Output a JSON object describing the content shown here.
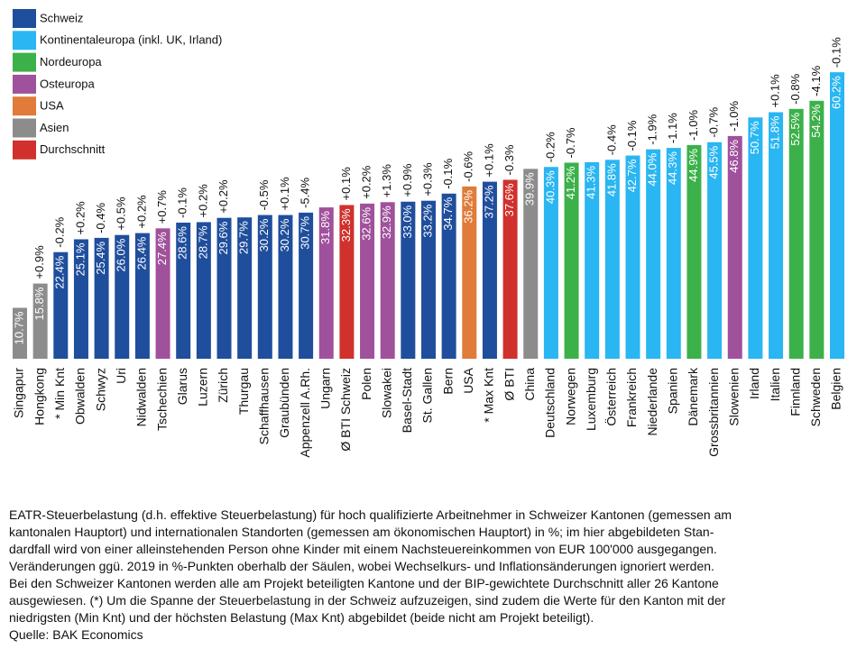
{
  "chart_data": {
    "type": "bar",
    "legend": [
      {
        "name": "Schweiz",
        "color": "#1f4e9c"
      },
      {
        "name": "Kontinentaleuropa (inkl. UK, Irland)",
        "color": "#29b6f2"
      },
      {
        "name": "Nordeuropa",
        "color": "#3cb14a"
      },
      {
        "name": "Osteuropa",
        "color": "#a0519c"
      },
      {
        "name": "USA",
        "color": "#e07b39"
      },
      {
        "name": "Asien",
        "color": "#8c8c8c"
      },
      {
        "name": "Durchschnitt",
        "color": "#d0312d"
      }
    ],
    "categories": [
      "Singapur",
      "Hongkong",
      "* Min Knt",
      "Obwalden",
      "Schwyz",
      "Uri",
      "Nidwalden",
      "Tschechien",
      "Glarus",
      "Luzern",
      "Zürich",
      "Thurgau",
      "Schaffhausen",
      "Graubünden",
      "Appenzell A.Rh.",
      "Ungarn",
      "Ø BTI Schweiz",
      "Polen",
      "Slowakei",
      "Basel-Stadt",
      "St. Gallen",
      "Bern",
      "USA",
      "* Max Knt",
      "Ø BTI",
      "China",
      "Deutschland",
      "Norwegen",
      "Luxemburg",
      "Österreich",
      "Frankreich",
      "Niederlande",
      "Spanien",
      "Dänemark",
      "Grossbritannien",
      "Slowenien",
      "Irland",
      "Italien",
      "Finnland",
      "Schweden",
      "Belgien"
    ],
    "values": [
      10.7,
      15.8,
      22.4,
      25.1,
      25.4,
      26.0,
      26.4,
      27.4,
      28.6,
      28.7,
      29.6,
      29.7,
      30.2,
      30.2,
      30.7,
      31.8,
      32.3,
      32.6,
      32.9,
      33.0,
      33.2,
      34.7,
      36.2,
      37.2,
      37.6,
      39.9,
      40.3,
      41.2,
      41.3,
      41.8,
      42.7,
      44.0,
      44.3,
      44.9,
      45.5,
      46.8,
      50.7,
      51.8,
      52.5,
      54.2,
      60.2
    ],
    "value_labels": [
      "10.7%",
      "15.8%",
      "22.4%",
      "25.1%",
      "25.4%",
      "26.0%",
      "26.4%",
      "27.4%",
      "28.6%",
      "28.7%",
      "29.6%",
      "29.7%",
      "30.2%",
      "30.2%",
      "30.7%",
      "31.8%",
      "32.3%",
      "32.6%",
      "32.9%",
      "33.0%",
      "33.2%",
      "34.7%",
      "36.2%",
      "37.2%",
      "37.6%",
      "39.9%",
      "40.3%",
      "41.2%",
      "41.3%",
      "41.8%",
      "42.7%",
      "44.0%",
      "44.3%",
      "44.9%",
      "45.5%",
      "46.8%",
      "50.7%",
      "51.8%",
      "52.5%",
      "54.2%",
      "60.2%"
    ],
    "change_labels": [
      null,
      "+0.9%",
      "-0.2%",
      "+0.2%",
      "-0.4%",
      "+0.5%",
      "+0.2%",
      "+0.7%",
      "-0.1%",
      "+0.2%",
      "+0.2%",
      null,
      "-0.5%",
      "+0.1%",
      "-5.4%",
      null,
      "+0.1%",
      "+0.2%",
      "+1.3%",
      "+0.9%",
      "+0.3%",
      "-0.1%",
      "-0.6%",
      "+0.1%",
      "-0.3%",
      null,
      "-0.2%",
      "-0.7%",
      null,
      "-0.4%",
      "-0.1%",
      "-1.9%",
      "-1.1%",
      "-1.0%",
      "-0.7%",
      "-1.0%",
      null,
      "+0.1%",
      "-0.8%",
      "-4.1%",
      "-0.1%"
    ],
    "colors": [
      "#8c8c8c",
      "#8c8c8c",
      "#1f4e9c",
      "#1f4e9c",
      "#1f4e9c",
      "#1f4e9c",
      "#1f4e9c",
      "#a0519c",
      "#1f4e9c",
      "#1f4e9c",
      "#1f4e9c",
      "#1f4e9c",
      "#1f4e9c",
      "#1f4e9c",
      "#1f4e9c",
      "#a0519c",
      "#d0312d",
      "#a0519c",
      "#a0519c",
      "#1f4e9c",
      "#1f4e9c",
      "#1f4e9c",
      "#e07b39",
      "#1f4e9c",
      "#d0312d",
      "#8c8c8c",
      "#29b6f2",
      "#3cb14a",
      "#29b6f2",
      "#29b6f2",
      "#29b6f2",
      "#29b6f2",
      "#29b6f2",
      "#3cb14a",
      "#29b6f2",
      "#a0519c",
      "#29b6f2",
      "#29b6f2",
      "#3cb14a",
      "#3cb14a",
      "#29b6f2"
    ],
    "footnote": [
      "EATR-Steuerbelastung (d.h. effektive Steuerbelastung) für hoch qualifizierte Arbeitnehmer in Schweizer Kantonen (gemessen am",
      "kantonalen Hauptort) und internationalen Standorten (gemessen am ökonomischen Hauptort) in %; im hier abgebildeten Stan-",
      "dardfall wird von einer alleinstehenden Person ohne Kinder mit einem Nachsteuereinkommen von EUR 100'000 ausgegangen.",
      "Veränderungen ggü. 2019 in %-Punkten oberhalb der Säulen, wobei Wechselkurs- und Inflationsänderungen ignoriert werden.",
      "Bei den Schweizer Kantonen werden alle am Projekt beteiligten Kantone und der BIP-gewichtete Durchschnitt aller 26 Kantone",
      "ausgewiesen. (*) Um die Spanne der Steuerbelastung in der Schweiz aufzuzeigen, sind zudem die Werte für den Kanton mit der",
      "niedrigsten (Min Knt) und der höchsten Belastung (Max Knt) abgebildet (beide nicht am Projekt beteiligt).",
      "Quelle: BAK Economics"
    ]
  }
}
